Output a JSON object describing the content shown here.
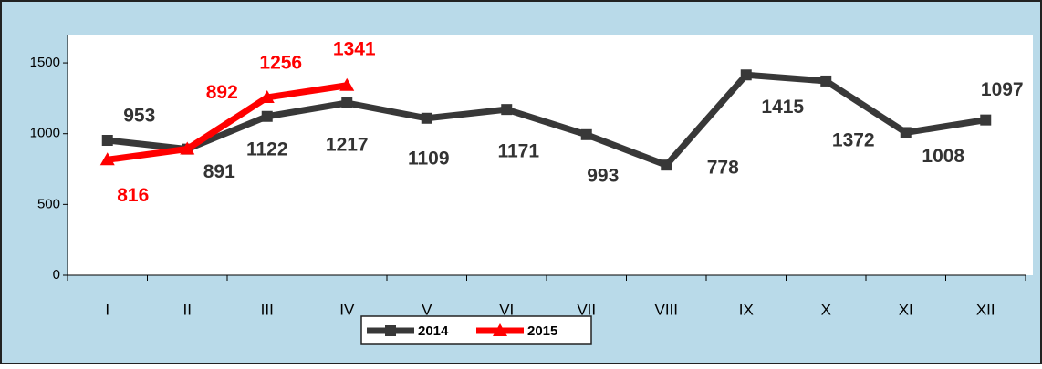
{
  "chart_data": {
    "type": "line",
    "categories": [
      "I",
      "II",
      "III",
      "IV",
      "V",
      "VI",
      "VII",
      "VIII",
      "IX",
      "X",
      "XI",
      "XII"
    ],
    "series": [
      {
        "name": "2014",
        "color": "#383838",
        "marker": "square",
        "values": [
          953,
          891,
          1122,
          1217,
          1109,
          1171,
          993,
          778,
          1415,
          1372,
          1008,
          1097
        ]
      },
      {
        "name": "2015",
        "color": "#ff0000",
        "marker": "triangle",
        "values": [
          816,
          892,
          1256,
          1341,
          null,
          null,
          null,
          null,
          null,
          null,
          null,
          null
        ]
      }
    ],
    "ylim": [
      0,
      1700
    ],
    "yticks": [
      0,
      500,
      1000,
      1500
    ],
    "legend": "bottom"
  }
}
